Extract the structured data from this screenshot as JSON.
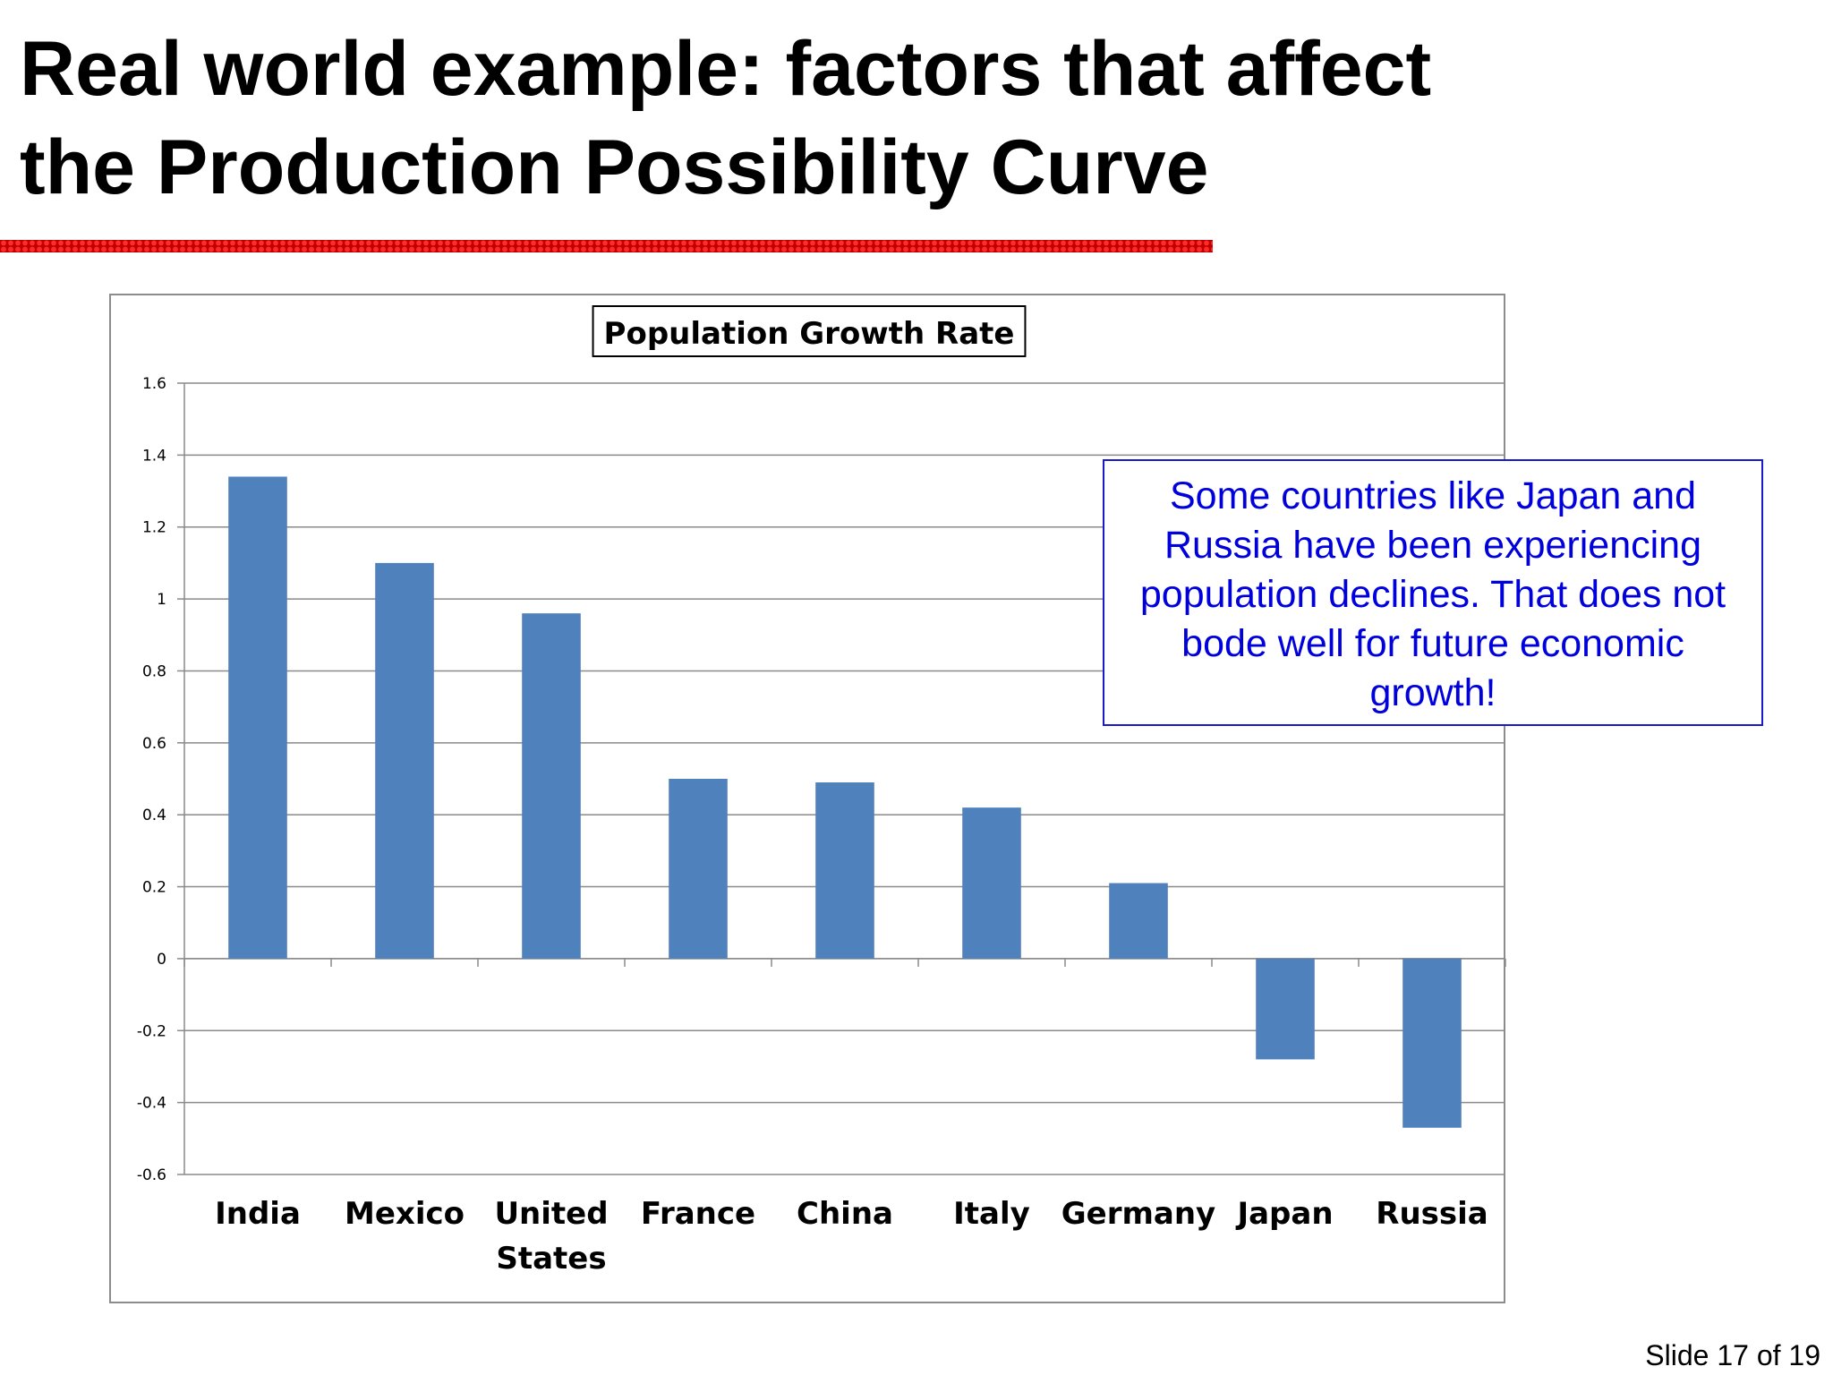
{
  "slide": {
    "title_lines": [
      "Real world example: factors that affect",
      "the Production Possibility Curve"
    ],
    "annotation": "Some countries like Japan and Russia have been experiencing population declines.  That does not bode well for future economic growth!",
    "slide_number": "Slide 17 of 19"
  },
  "colors": {
    "bar": "#4f81bd",
    "title_rule": "#c00000",
    "annotation_text": "#0000dd"
  },
  "chart_data": {
    "type": "bar",
    "title": "Population Growth Rate",
    "xlabel": "",
    "ylabel": "",
    "categories": [
      "India",
      "Mexico",
      "United States",
      "France",
      "China",
      "Italy",
      "Germany",
      "Japan",
      "Russia"
    ],
    "category_lines": [
      [
        "India"
      ],
      [
        "Mexico"
      ],
      [
        "United",
        "States"
      ],
      [
        "France"
      ],
      [
        "China"
      ],
      [
        "Italy"
      ],
      [
        "Germany"
      ],
      [
        "Japan"
      ],
      [
        "Russia"
      ]
    ],
    "values": [
      1.34,
      1.1,
      0.96,
      0.5,
      0.49,
      0.42,
      0.21,
      -0.28,
      -0.47
    ],
    "ylim": [
      -0.6,
      1.6
    ],
    "yticks": [
      -0.6,
      -0.4,
      -0.2,
      0,
      0.2,
      0.4,
      0.6,
      0.8,
      1,
      1.2,
      1.4,
      1.6
    ],
    "ytick_labels": [
      "-0.6",
      "-0.4",
      "-0.2",
      "0",
      "0.2",
      "0.4",
      "0.6",
      "0.8",
      "1",
      "1.2",
      "1.4",
      "1.6"
    ],
    "grid": true,
    "legend": "none"
  }
}
